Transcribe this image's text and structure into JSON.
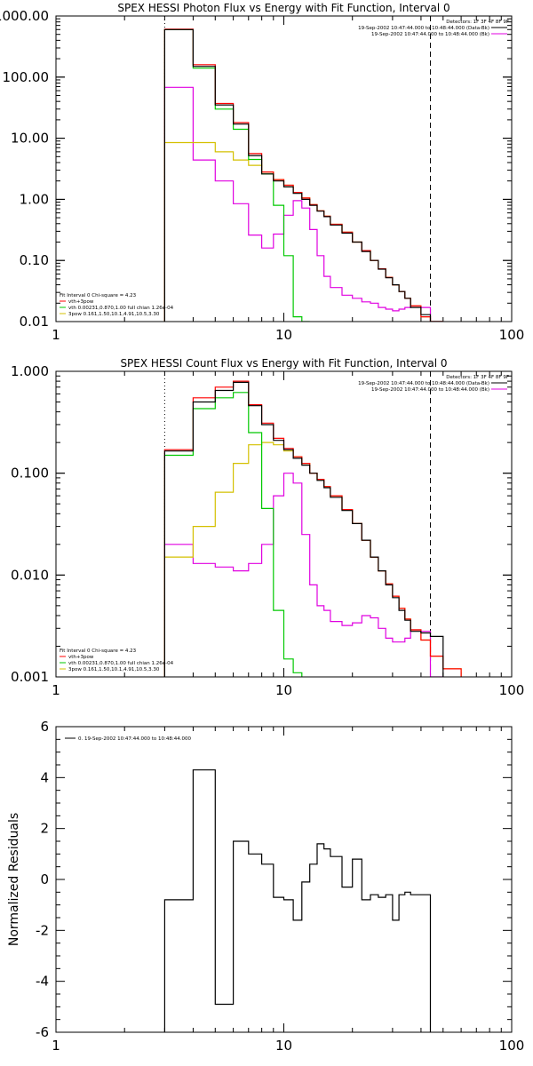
{
  "chart_data": [
    {
      "type": "line",
      "step": true,
      "title": "SPEX HESSI Photon Flux vs Energy with Fit Function, Interval 0",
      "ylabel": "",
      "xlabel": "",
      "xscale": "log",
      "yscale": "log",
      "xlim": [
        1,
        100
      ],
      "ylim": [
        0.01,
        1000
      ],
      "xticklabels": [
        "1",
        "10",
        "100"
      ],
      "yticklabels": [
        "0.01",
        "0.10",
        "1.00",
        "10.00",
        "100.00",
        "1000.00"
      ],
      "vlines": [
        {
          "x": 3,
          "style": "dotted",
          "color": "#000000"
        },
        {
          "x": 44,
          "style": "dashed",
          "color": "#000000"
        }
      ],
      "legend_topright": [
        "Detectors: 1F 3F 4F 8F 9F",
        "19-Sep-2002 10:47:44.000 to 10:48:44.000 (Data-Bk)",
        "19-Sep-2002 10:47:44.000 to 10:48:44.000 (Bk)"
      ],
      "legend_bottomleft": [
        "Fit Interval 0   Chi-square = 4.23",
        "vth+3pow",
        "vth 0.00231,0.870,1.00  full chian 1.26e-04",
        "3pow 0.161,1.50,10.1,4.91,10.5,3.30"
      ],
      "edges": [
        3,
        4,
        5,
        6,
        7,
        8,
        9,
        10,
        11,
        12,
        13,
        14,
        15,
        16,
        18,
        20,
        22,
        24,
        26,
        28,
        30,
        32,
        34,
        36,
        40,
        44,
        50
      ],
      "series": [
        {
          "name": "Data-Bk",
          "color": "#000000",
          "values": [
            600,
            150,
            35,
            17,
            5.2,
            2.6,
            2.0,
            1.6,
            1.25,
            1.0,
            0.8,
            0.64,
            0.52,
            0.38,
            0.28,
            0.2,
            0.14,
            0.1,
            0.072,
            0.052,
            0.04,
            0.031,
            0.024,
            0.017,
            0.013,
            0.01
          ]
        },
        {
          "name": "vth+3pow",
          "color": "#ff0000",
          "values": [
            610,
            160,
            37,
            18,
            5.6,
            2.8,
            2.1,
            1.7,
            1.3,
            1.05,
            0.82,
            0.65,
            0.53,
            0.39,
            0.29,
            0.2,
            0.145,
            0.1,
            0.073,
            0.053,
            0.04,
            0.031,
            0.024,
            0.018,
            0.012,
            0.009
          ]
        },
        {
          "name": "vth",
          "color": "#00c800",
          "values": [
            600,
            140,
            30,
            14,
            4.5,
            2.6,
            0.8,
            0.12,
            0.012,
            0.005
          ]
        },
        {
          "name": "3pow",
          "color": "#d4c000",
          "values": [
            8.5,
            8.5,
            6.0,
            4.4,
            3.6,
            2.8,
            2.1,
            1.7,
            1.3,
            1.05,
            0.82,
            0.65,
            0.53,
            0.39,
            0.29,
            0.2,
            0.145,
            0.1,
            0.073,
            0.053,
            0.04,
            0.031,
            0.024,
            0.018,
            0.012,
            0.009
          ]
        },
        {
          "name": "Bk",
          "color": "#e000e0",
          "values": [
            68,
            4.4,
            2.0,
            0.85,
            0.26,
            0.16,
            0.27,
            0.55,
            0.95,
            0.72,
            0.32,
            0.12,
            0.055,
            0.036,
            0.027,
            0.024,
            0.021,
            0.02,
            0.017,
            0.016,
            0.015,
            0.016,
            0.017,
            0.018,
            0.017,
            0.009
          ]
        }
      ]
    },
    {
      "type": "line",
      "step": true,
      "title": "SPEX HESSI Count Flux vs Energy with Fit Function, Interval 0",
      "ylabel": "",
      "xlabel": "",
      "xscale": "log",
      "yscale": "log",
      "xlim": [
        1,
        100
      ],
      "ylim": [
        0.001,
        1
      ],
      "xticklabels": [
        "1",
        "10",
        "100"
      ],
      "yticklabels": [
        "0.001",
        "0.010",
        "0.100",
        "1.000"
      ],
      "vlines": [
        {
          "x": 3,
          "style": "dotted",
          "color": "#000000"
        },
        {
          "x": 44,
          "style": "dashed",
          "color": "#000000"
        }
      ],
      "legend_topright": [
        "Detectors: 1F 3F 4F 8F 9F",
        "19-Sep-2002 10:47:44.000 to 10:48:44.000 (Data-Bk)",
        "19-Sep-2002 10:47:44.000 to 10:48:44.000 (Bk)"
      ],
      "legend_bottomleft": [
        "Fit Interval 0   Chi-square = 4.23",
        "vth+3pow",
        "vth 0.00231,0.870,1.00  full chian 1.26e-04",
        "3pow 0.161,1.50,10.1,4.91,10.5,3.30"
      ],
      "edges": [
        3,
        4,
        5,
        6,
        7,
        8,
        9,
        10,
        11,
        12,
        13,
        14,
        15,
        16,
        18,
        20,
        22,
        24,
        26,
        28,
        30,
        32,
        34,
        36,
        40,
        44,
        50,
        60
      ],
      "series": [
        {
          "name": "Data-Bk",
          "color": "#000000",
          "values": [
            0.165,
            0.5,
            0.65,
            0.78,
            0.46,
            0.3,
            0.21,
            0.17,
            0.14,
            0.12,
            0.1,
            0.085,
            0.072,
            0.058,
            0.043,
            0.032,
            0.022,
            0.015,
            0.011,
            0.008,
            0.006,
            0.0045,
            0.0036,
            0.0028,
            0.0027,
            0.0025
          ]
        },
        {
          "name": "vth+3pow",
          "color": "#ff0000",
          "values": [
            0.17,
            0.55,
            0.7,
            0.8,
            0.47,
            0.31,
            0.22,
            0.175,
            0.145,
            0.125,
            0.1,
            0.087,
            0.074,
            0.06,
            0.044,
            0.032,
            0.022,
            0.015,
            0.011,
            0.0082,
            0.0062,
            0.0047,
            0.0037,
            0.0029,
            0.0023,
            0.0016,
            0.0012
          ]
        },
        {
          "name": "vth",
          "color": "#00c800",
          "values": [
            0.15,
            0.43,
            0.55,
            0.62,
            0.25,
            0.045,
            0.0045,
            0.0015,
            0.0011
          ]
        },
        {
          "name": "3pow",
          "color": "#d4c000",
          "values": [
            0.015,
            0.03,
            0.065,
            0.125,
            0.19,
            0.2,
            0.19,
            0.165,
            0.145,
            0.125,
            0.1,
            0.087,
            0.074,
            0.06,
            0.044,
            0.032,
            0.022,
            0.015,
            0.011,
            0.0082,
            0.0062,
            0.0047,
            0.0037,
            0.0029,
            0.0023,
            0.0016,
            0.0012
          ]
        },
        {
          "name": "Bk",
          "color": "#e000e0",
          "values": [
            0.02,
            0.013,
            0.012,
            0.011,
            0.013,
            0.02,
            0.06,
            0.1,
            0.08,
            0.025,
            0.008,
            0.005,
            0.0045,
            0.0035,
            0.0032,
            0.0034,
            0.004,
            0.0038,
            0.003,
            0.0024,
            0.0022,
            0.0022,
            0.0024,
            0.0029,
            0.0028,
            0.0009
          ]
        }
      ]
    },
    {
      "type": "line",
      "step": true,
      "title": "",
      "ylabel": "Normalized Residuals",
      "xlabel": "",
      "xscale": "log",
      "yscale": "linear",
      "xlim": [
        1,
        100
      ],
      "ylim": [
        -6,
        6
      ],
      "xticklabels": [
        "1",
        "10",
        "100"
      ],
      "yticks": [
        6,
        4,
        2,
        0,
        -2,
        -4,
        -6
      ],
      "yticklabels": [
        "6",
        "4",
        "2",
        "0",
        "-2",
        "-4",
        "-6"
      ],
      "legend": [
        "0. 19-Sep-2002 10:47:44.000 to 10:48:44.000"
      ],
      "edges": [
        3,
        4,
        5,
        6,
        7,
        8,
        9,
        10,
        11,
        12,
        13,
        14,
        15,
        16,
        18,
        20,
        22,
        24,
        26,
        28,
        30,
        32,
        34,
        36,
        40,
        44
      ],
      "series": [
        {
          "name": "0. 19-Sep-2002 10:47:44.000 to 10:48:44.000",
          "color": "#000000",
          "values": [
            -0.8,
            4.3,
            -4.9,
            1.5,
            1.0,
            0.6,
            -0.7,
            -0.8,
            -1.6,
            -0.1,
            0.6,
            1.4,
            1.2,
            0.9,
            -0.3,
            0.8,
            -0.8,
            -0.6,
            -0.7,
            -0.6,
            -1.6,
            -0.6,
            -0.5,
            -0.6,
            -0.6
          ]
        }
      ],
      "series_start": -6,
      "series_end": -6
    }
  ]
}
